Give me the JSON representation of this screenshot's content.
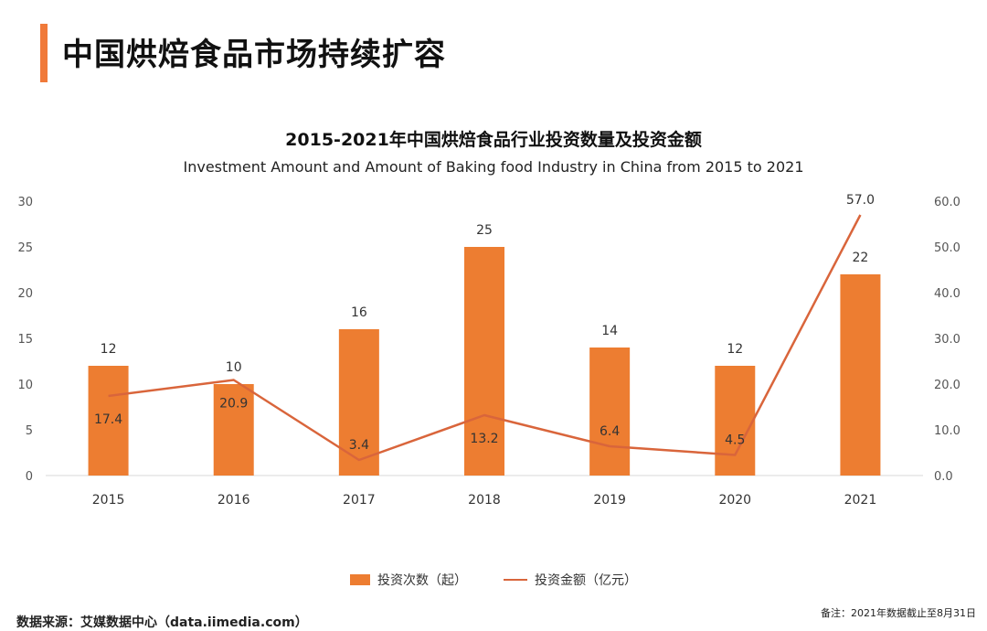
{
  "page": {
    "title": "中国烘焙食品市场持续扩容",
    "source": "数据来源：艾媒数据中心（data.iimedia.com）",
    "note": "备注：2021年数据截止至8月31日"
  },
  "colors": {
    "accent": "#f07a3a",
    "bar": "#ed7d31",
    "line": "#d9653b",
    "axis": "#d9d9d9"
  },
  "chart_data": {
    "type": "bar",
    "title": "2015-2021年中国烘焙食品行业投资数量及投资金额",
    "subtitle": "Investment Amount and Amount of Baking food Industry in China from 2015 to 2021",
    "categories": [
      "2015",
      "2016",
      "2017",
      "2018",
      "2019",
      "2020",
      "2021"
    ],
    "series": [
      {
        "name": "投资次数（起）",
        "type": "bar",
        "axis": "left",
        "values": [
          12,
          10,
          16,
          25,
          14,
          12,
          22
        ]
      },
      {
        "name": "投资金额（亿元）",
        "type": "line",
        "axis": "right",
        "values": [
          17.4,
          20.9,
          3.4,
          13.2,
          6.4,
          4.5,
          57.0
        ]
      }
    ],
    "y_left": {
      "ylim": [
        0,
        30
      ],
      "ticks": [
        "0",
        "5",
        "10",
        "15",
        "20",
        "25",
        "30"
      ]
    },
    "y_right": {
      "ylim": [
        0,
        60
      ],
      "ticks": [
        "0.0",
        "10.0",
        "20.0",
        "30.0",
        "40.0",
        "50.0",
        "60.0"
      ]
    },
    "legend_position": "bottom-center"
  }
}
